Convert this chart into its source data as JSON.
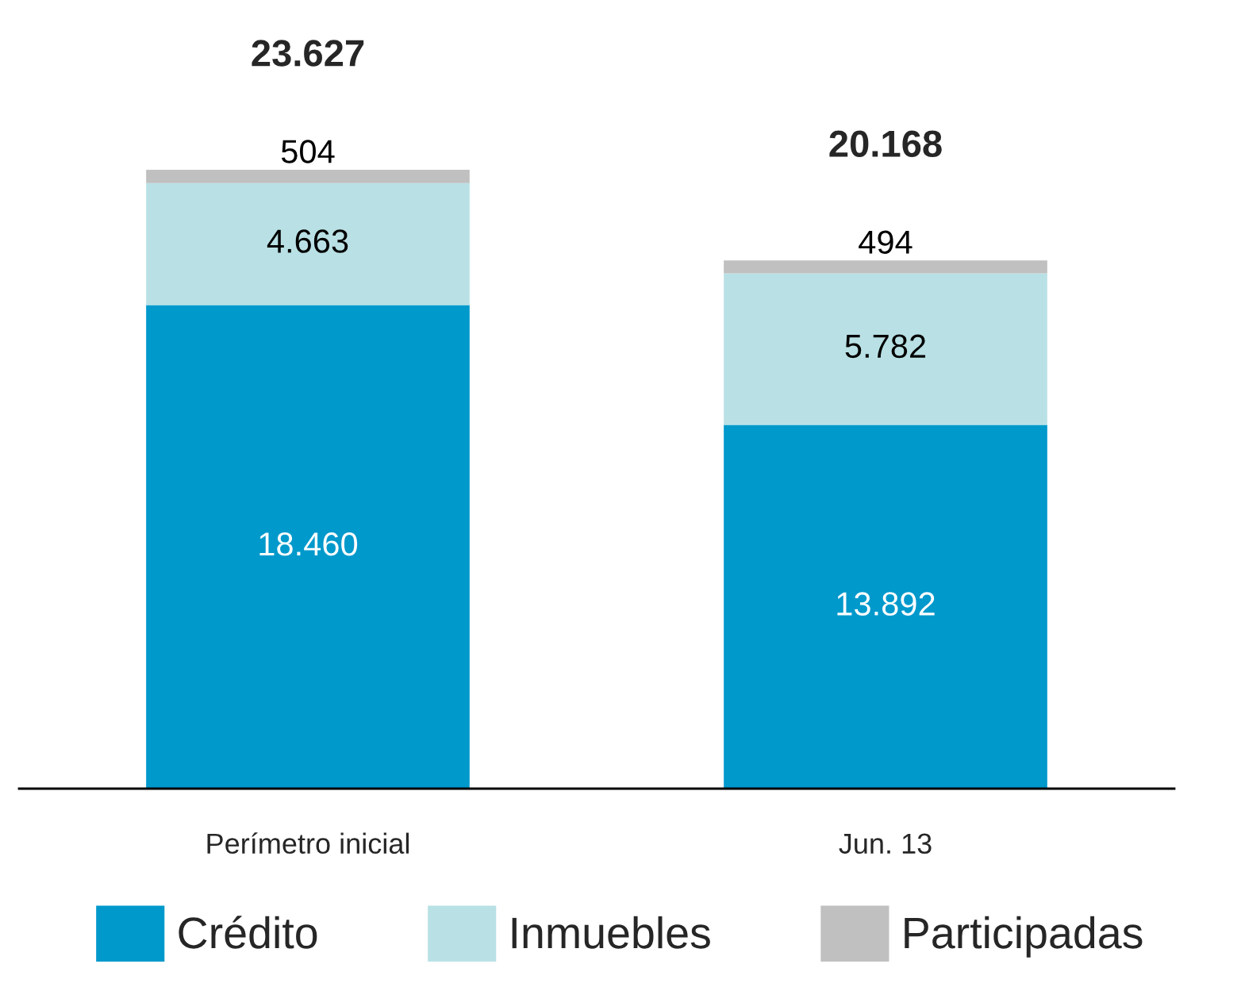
{
  "chart_data": {
    "type": "bar",
    "stacked": true,
    "categories": [
      "Perímetro inicial",
      "Jun. 13"
    ],
    "series": [
      {
        "name": "Crédito",
        "color": "#0099cc",
        "values": [
          18460,
          13892
        ],
        "value_labels": [
          "18.460",
          "13.892"
        ]
      },
      {
        "name": "Inmuebles",
        "color": "#b9e1e5",
        "values": [
          4663,
          5782
        ],
        "value_labels": [
          "4.663",
          "5.782"
        ]
      },
      {
        "name": "Participadas",
        "color": "#c0c0c0",
        "values": [
          504,
          494
        ],
        "value_labels": [
          "504",
          "494"
        ]
      }
    ],
    "totals": [
      "23.627",
      "20.168"
    ],
    "legend": "bottom",
    "tick_labels": "x",
    "grid": false
  }
}
